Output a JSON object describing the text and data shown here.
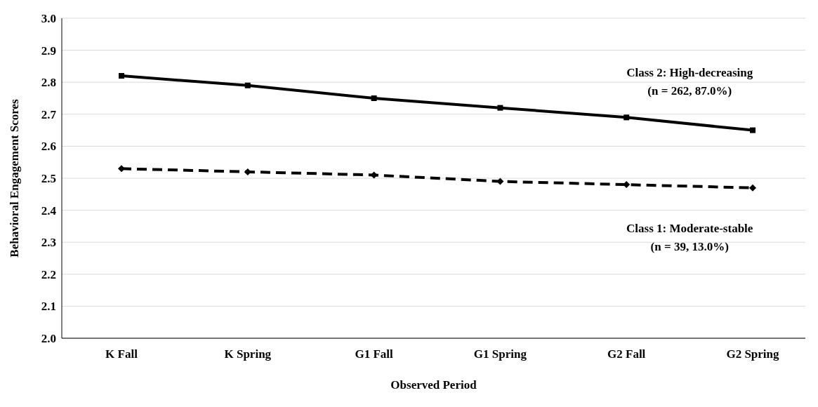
{
  "chart_data": {
    "type": "line",
    "xlabel": "Observed Period",
    "ylabel": "Behavioral Engagement Scores",
    "categories": [
      "K Fall",
      "K Spring",
      "G1 Fall",
      "G1 Spring",
      "G2 Fall",
      "G2 Spring"
    ],
    "series": [
      {
        "name": "Class 2: High-decreasing",
        "color": "#000000",
        "marker": "square",
        "line_style": "solid",
        "values": [
          2.82,
          2.79,
          2.75,
          2.72,
          2.69,
          2.65
        ]
      },
      {
        "name": "Class 1: Moderate-stable",
        "color": "#000000",
        "marker": "diamond",
        "line_style": "dashed",
        "values": [
          2.53,
          2.52,
          2.51,
          2.49,
          2.48,
          2.47
        ]
      }
    ],
    "annotations": [
      "(n = 262, 87.0%)",
      "(n = 39, 13.0%)"
    ],
    "ylim": [
      2.0,
      3.0
    ],
    "yticks": [
      {
        "value": 2.0,
        "label": "2.0"
      },
      {
        "value": 2.1,
        "label": "2.1"
      },
      {
        "value": 2.2,
        "label": "2.2"
      },
      {
        "value": 2.3,
        "label": "2.3"
      },
      {
        "value": 2.4,
        "label": "2.4"
      },
      {
        "value": 2.5,
        "label": "2.5"
      },
      {
        "value": 2.6,
        "label": "2.6"
      },
      {
        "value": 2.7,
        "label": "2.7"
      },
      {
        "value": 2.8,
        "label": "2.8"
      },
      {
        "value": 2.9,
        "label": "2.9"
      },
      {
        "value": 3.0,
        "label": "3.0"
      }
    ],
    "grid": "y",
    "legend": false
  }
}
